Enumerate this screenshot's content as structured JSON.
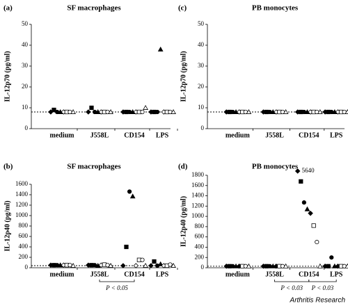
{
  "chart_data": [
    {
      "type": "strip",
      "panel": "(a)",
      "title": "SF macrophages",
      "y_label": "IL-12p70 (pg/ml)",
      "categories": [
        "medium",
        "J558L",
        "CD154",
        "LPS"
      ],
      "ylim": [
        0,
        50
      ],
      "yticks": [
        0,
        10,
        20,
        30,
        40,
        50
      ],
      "reference_line": 8,
      "series": [
        {
          "marker": "diamond",
          "filled": true,
          "color": "#000",
          "values": [
            8,
            8,
            8,
            8
          ]
        },
        {
          "marker": "square",
          "filled": true,
          "color": "#000",
          "values": [
            9,
            10,
            8,
            8
          ]
        },
        {
          "marker": "circle",
          "filled": true,
          "color": "#000",
          "values": [
            8,
            8,
            8,
            8
          ]
        },
        {
          "marker": "triangle",
          "filled": true,
          "color": "#000",
          "values": [
            8,
            8,
            8,
            38
          ]
        },
        {
          "marker": "diamond",
          "filled": false,
          "color": "#000",
          "values": [
            8,
            8,
            8,
            8
          ]
        },
        {
          "marker": "square",
          "filled": false,
          "color": "#000",
          "values": [
            8,
            8,
            8,
            8
          ]
        },
        {
          "marker": "circle",
          "filled": false,
          "color": "#000",
          "values": [
            8,
            8,
            8,
            8
          ]
        },
        {
          "marker": "triangle",
          "filled": false,
          "color": "#000",
          "values": [
            8,
            8,
            10,
            8
          ]
        }
      ]
    },
    {
      "type": "strip",
      "panel": "(b)",
      "title": "SF macrophages",
      "y_label": "IL-12p40 (pg/ml)",
      "categories": [
        "medium",
        "J558L",
        "CD154",
        "LPS"
      ],
      "ylim": [
        0,
        1600
      ],
      "yticks": [
        0,
        200,
        400,
        600,
        800,
        1000,
        1200,
        1400,
        1600
      ],
      "reference_line": 40,
      "comparisons": [
        {
          "between": [
            "J558L",
            "CD154"
          ],
          "label": "P < 0.05"
        }
      ],
      "series": [
        {
          "marker": "diamond",
          "filled": true,
          "color": "#000",
          "values": [
            50,
            50,
            40,
            40
          ]
        },
        {
          "marker": "square",
          "filled": true,
          "color": "#000",
          "values": [
            50,
            50,
            400,
            120
          ]
        },
        {
          "marker": "circle",
          "filled": true,
          "color": "#000",
          "values": [
            50,
            50,
            1460,
            40
          ]
        },
        {
          "marker": "triangle",
          "filled": true,
          "color": "#000",
          "values": [
            50,
            40,
            1370,
            70
          ]
        },
        {
          "marker": "diamond",
          "filled": false,
          "color": "#000",
          "values": [
            50,
            50,
            40,
            40
          ]
        },
        {
          "marker": "square",
          "filled": false,
          "color": "#000",
          "values": [
            50,
            60,
            150,
            40
          ]
        },
        {
          "marker": "circle",
          "filled": false,
          "color": "#000",
          "values": [
            50,
            50,
            150,
            60
          ]
        },
        {
          "marker": "triangle",
          "filled": false,
          "color": "#000",
          "values": [
            40,
            40,
            40,
            40
          ]
        }
      ]
    },
    {
      "type": "strip",
      "panel": "(c)",
      "title": "PB monocytes",
      "y_label": "IL-12p70 (pg/ml)",
      "categories": [
        "medium",
        "J558L",
        "CD154",
        "LPS"
      ],
      "ylim": [
        0,
        50
      ],
      "yticks": [
        0,
        10,
        20,
        30,
        40,
        50
      ],
      "reference_line": 8,
      "series": [
        {
          "marker": "diamond",
          "filled": true,
          "color": "#000",
          "values": [
            8,
            8,
            8,
            8
          ]
        },
        {
          "marker": "square",
          "filled": true,
          "color": "#000",
          "values": [
            8,
            8,
            8,
            8
          ]
        },
        {
          "marker": "circle",
          "filled": true,
          "color": "#000",
          "values": [
            8,
            8,
            8,
            8
          ]
        },
        {
          "marker": "triangle",
          "filled": true,
          "color": "#000",
          "values": [
            8,
            8,
            8,
            8
          ]
        },
        {
          "marker": "diamond",
          "filled": false,
          "color": "#000",
          "values": [
            8,
            8,
            8,
            8
          ]
        },
        {
          "marker": "square",
          "filled": false,
          "color": "#000",
          "values": [
            8,
            8,
            8,
            8
          ]
        },
        {
          "marker": "circle",
          "filled": false,
          "color": "#000",
          "values": [
            8,
            8,
            8,
            8
          ]
        },
        {
          "marker": "triangle",
          "filled": false,
          "color": "#000",
          "values": [
            8,
            8,
            8,
            8
          ]
        }
      ]
    },
    {
      "type": "strip",
      "panel": "(d)",
      "title": "PB monocytes",
      "y_label": "IL-12p40 (pg/ml)",
      "categories": [
        "medium",
        "J558L",
        "CD154",
        "LPS"
      ],
      "ylim": [
        0,
        1800
      ],
      "yticks": [
        0,
        200,
        400,
        600,
        800,
        1000,
        1200,
        1400,
        1600,
        1800
      ],
      "reference_line": 30,
      "comparisons": [
        {
          "between": [
            "J558L",
            "CD154"
          ],
          "label": "P < 0.03"
        },
        {
          "between": [
            "CD154",
            "LPS"
          ],
          "label": "P < 0.03"
        }
      ],
      "series": [
        {
          "marker": "diamond",
          "filled": true,
          "color": "#000",
          "values": [
            30,
            30,
            5640,
            30
          ],
          "value_labels": [
            null,
            null,
            "5640",
            null
          ]
        },
        {
          "marker": "square",
          "filled": true,
          "color": "#000",
          "values": [
            30,
            30,
            1680,
            30
          ]
        },
        {
          "marker": "circle",
          "filled": true,
          "color": "#000",
          "values": [
            30,
            30,
            1270,
            200
          ]
        },
        {
          "marker": "triangle",
          "filled": true,
          "color": "#000",
          "values": [
            30,
            30,
            1140,
            30
          ]
        },
        {
          "marker": "diamond",
          "filled": true,
          "color": "#000",
          "values": [
            30,
            30,
            1060,
            30
          ]
        },
        {
          "marker": "square",
          "filled": false,
          "color": "#000",
          "values": [
            30,
            30,
            820,
            30
          ]
        },
        {
          "marker": "circle",
          "filled": false,
          "color": "#000",
          "values": [
            30,
            30,
            500,
            30
          ]
        },
        {
          "marker": "triangle",
          "filled": false,
          "color": "#000",
          "values": [
            30,
            30,
            30,
            30
          ]
        }
      ]
    }
  ],
  "footer": "Arthritis Research"
}
